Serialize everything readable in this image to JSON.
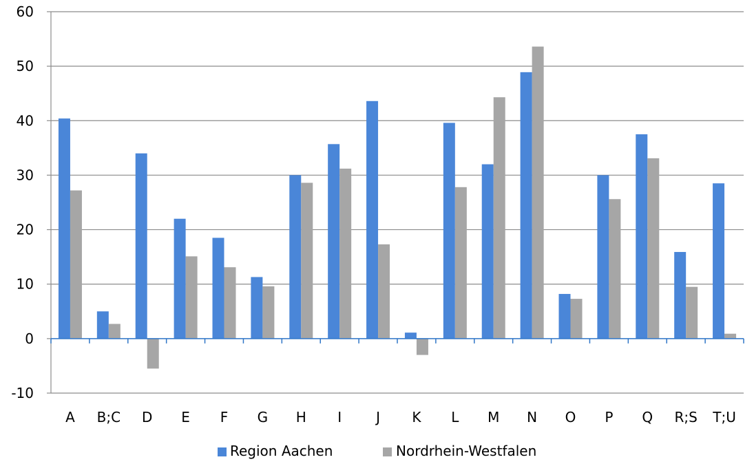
{
  "chart_data": {
    "type": "bar",
    "categories": [
      "A",
      "B;C",
      "D",
      "E",
      "F",
      "G",
      "H",
      "I",
      "J",
      "K",
      "L",
      "M",
      "N",
      "O",
      "P",
      "Q",
      "R;S",
      "T;U"
    ],
    "series": [
      {
        "name": "Region Aachen",
        "color": "#4a86d8",
        "values": [
          40.4,
          5.0,
          34.0,
          22.0,
          18.5,
          11.3,
          30.0,
          35.7,
          43.6,
          1.1,
          39.6,
          32.0,
          48.9,
          8.2,
          30.0,
          37.5,
          15.9,
          28.5
        ]
      },
      {
        "name": "Nordrhein-Westfalen",
        "color": "#a6a6a6",
        "values": [
          27.2,
          2.7,
          -5.5,
          15.1,
          13.1,
          9.6,
          28.6,
          31.2,
          17.3,
          -3.0,
          27.8,
          44.3,
          53.6,
          7.3,
          25.6,
          33.1,
          9.5,
          0.9
        ]
      }
    ],
    "y_ticks": [
      "-10",
      "0",
      "10",
      "20",
      "30",
      "40",
      "50",
      "60"
    ],
    "ylim": [
      -10,
      60
    ],
    "grid": true,
    "legend_position": "bottom",
    "xlabel": "",
    "ylabel": "",
    "title": ""
  }
}
